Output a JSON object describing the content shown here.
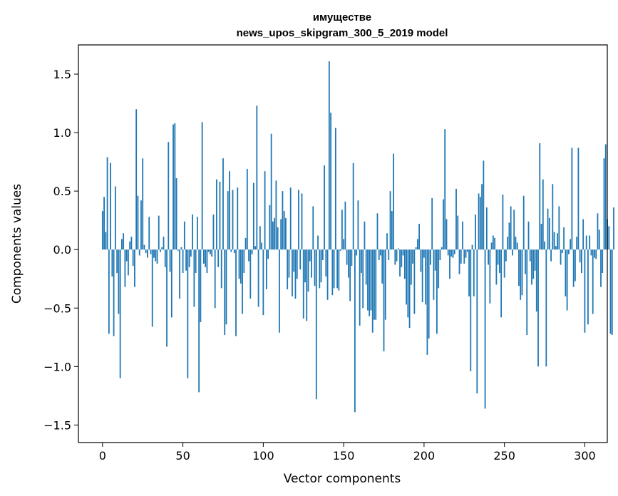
{
  "chart_data": {
    "type": "bar",
    "title": "имуществе",
    "subtitle": "news_upos_skipgram_300_5_2019 model",
    "xlabel": "Vector components",
    "ylabel": "Components values",
    "xlim": [
      -15,
      314
    ],
    "ylim": [
      -1.65,
      1.75
    ],
    "xticks": [
      0,
      50,
      100,
      150,
      200,
      250,
      300
    ],
    "yticks": [
      -1.5,
      -1.0,
      -0.5,
      0.0,
      0.5,
      1.0,
      1.5
    ],
    "ytick_labels": [
      "−1.5",
      "−1.0",
      "−0.5",
      "0.0",
      "0.5",
      "1.0",
      "1.5"
    ],
    "bar_color": "#1f77b4",
    "grid": false,
    "values": [
      0.33,
      0.45,
      0.15,
      0.79,
      -0.72,
      0.74,
      -0.23,
      -0.74,
      0.54,
      -0.2,
      -0.55,
      -1.1,
      0.09,
      0.14,
      -0.32,
      -0.1,
      -0.22,
      0.07,
      0.11,
      -0.14,
      -0.32,
      1.2,
      0.46,
      -0.05,
      0.42,
      0.78,
      0.04,
      -0.03,
      -0.07,
      0.28,
      -0.04,
      -0.66,
      -0.07,
      -0.1,
      -0.12,
      0.29,
      -0.02,
      0.02,
      0.11,
      -0.15,
      -0.83,
      0.92,
      -0.19,
      -0.58,
      1.07,
      1.08,
      0.61,
      -0.01,
      -0.42,
      0.02,
      -0.2,
      0.24,
      -0.18,
      -1.1,
      -0.15,
      -0.06,
      0.3,
      -0.49,
      -0.2,
      0.28,
      -1.22,
      -0.62,
      1.09,
      -0.12,
      -0.15,
      -0.2,
      -0.02,
      -0.04,
      -0.06,
      0.3,
      -0.5,
      0.6,
      -0.15,
      0.58,
      -0.33,
      0.78,
      -0.73,
      -0.64,
      0.5,
      0.67,
      -0.02,
      0.51,
      -0.03,
      -0.74,
      0.53,
      -0.25,
      -0.29,
      -0.55,
      -0.2,
      0.1,
      0.69,
      -0.1,
      -0.42,
      -0.04,
      0.57,
      0.03,
      1.23,
      -0.49,
      0.2,
      0.06,
      -0.56,
      0.67,
      -0.34,
      -0.08,
      0.38,
      0.99,
      0.24,
      0.27,
      0.59,
      0.19,
      -0.71,
      0.26,
      0.5,
      0.33,
      0.27,
      -0.34,
      -0.24,
      0.53,
      -0.4,
      -0.19,
      -0.42,
      -0.25,
      0.51,
      -0.17,
      0.48,
      -0.59,
      -0.28,
      -0.61,
      -0.36,
      -0.1,
      -0.24,
      0.37,
      -0.31,
      -1.28,
      0.12,
      -0.33,
      -0.28,
      -0.09,
      0.72,
      -0.23,
      -0.43,
      1.61,
      1.17,
      -0.39,
      -0.33,
      1.04,
      -0.33,
      -0.35,
      -0.01,
      0.34,
      0.09,
      0.41,
      -0.13,
      -0.24,
      -0.44,
      -0.14,
      0.74,
      -1.39,
      -0.05,
      0.42,
      -0.65,
      -0.2,
      -0.5,
      0.24,
      -0.3,
      -0.52,
      -0.57,
      -0.52,
      -0.71,
      -0.6,
      -0.6,
      0.31,
      -0.09,
      -0.05,
      -0.29,
      -0.87,
      -0.6,
      0.14,
      -0.09,
      0.5,
      0.33,
      0.82,
      -0.13,
      -0.1,
      0.01,
      -0.23,
      -0.15,
      -0.05,
      -0.25,
      -0.47,
      -0.58,
      -0.67,
      -0.3,
      -0.12,
      -0.55,
      0.02,
      0.09,
      0.22,
      -0.19,
      -0.45,
      -0.07,
      -0.47,
      -0.9,
      -0.76,
      -0.13,
      0.44,
      -0.43,
      -0.18,
      -0.72,
      -0.33,
      -0.09,
      0.02,
      0.43,
      1.03,
      0.26,
      -0.05,
      -0.25,
      -0.06,
      -0.07,
      -0.04,
      0.52,
      0.29,
      -0.21,
      -0.12,
      0.24,
      -0.12,
      -0.07,
      -0.02,
      -0.4,
      -1.04,
      0.04,
      -0.4,
      0.3,
      -1.23,
      0.48,
      0.45,
      0.56,
      0.76,
      -1.36,
      0.36,
      -0.13,
      -0.46,
      0.06,
      0.12,
      0.1,
      -0.3,
      -0.13,
      -0.2,
      -0.58,
      0.47,
      -0.24,
      -0.1,
      0.11,
      0.23,
      0.37,
      -0.05,
      0.34,
      0.11,
      0.06,
      -0.31,
      -0.43,
      -0.39,
      0.46,
      -0.21,
      -0.73,
      0.24,
      -0.1,
      -0.3,
      -0.25,
      -0.18,
      -0.53,
      -1.0,
      0.91,
      0.22,
      0.6,
      0.07,
      -1.0,
      0.35,
      0.27,
      -0.1,
      0.56,
      0.15,
      0.03,
      0.14,
      0.37,
      -0.13,
      -0.03,
      0.19,
      -0.4,
      -0.52,
      -0.04,
      0.09,
      0.87,
      -0.32,
      -0.27,
      0.11,
      0.87,
      -0.11,
      -0.2,
      0.26,
      -0.71,
      0.12,
      -0.64,
      0.12,
      -0.05,
      -0.55,
      -0.07,
      -0.08,
      0.31,
      0.17,
      -0.32,
      -0.2,
      0.78,
      0.9,
      0.26,
      0.2,
      -0.72,
      -0.73,
      0.36
    ]
  }
}
